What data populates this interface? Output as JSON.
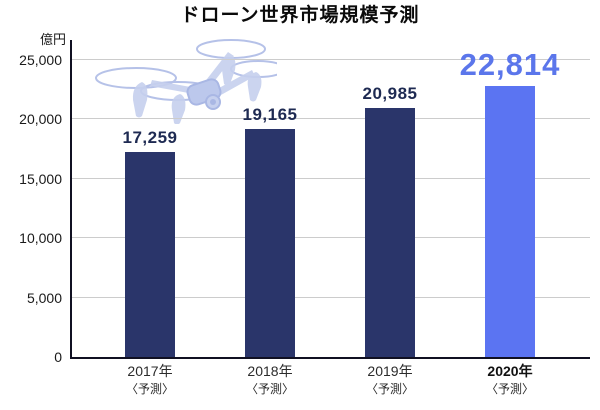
{
  "chart": {
    "title": "ドローン世界市場規模予測",
    "unit_label": "億円"
  },
  "chart_data": {
    "type": "bar",
    "title": "ドローン世界市場規模予測",
    "ylabel": "億円",
    "xlabel": "",
    "categories": [
      "2017年",
      "2018年",
      "2019年",
      "2020年"
    ],
    "category_subs": [
      "〈予測〉",
      "〈予測〉",
      "〈予測〉",
      "〈予測〉"
    ],
    "values": [
      17259,
      19165,
      20985,
      22814
    ],
    "value_labels": [
      "17,259",
      "19,165",
      "20,985",
      "22,814"
    ],
    "ylim": [
      0,
      25000
    ],
    "yticks": [
      0,
      5000,
      10000,
      15000,
      20000,
      25000
    ],
    "ytick_labels": [
      "0",
      "5,000",
      "10,000",
      "15,000",
      "20,000",
      "25,000"
    ],
    "grid": true,
    "legend": "none",
    "highlight_index": 3,
    "colors": {
      "bar_default": "#2a356a",
      "bar_highlight": "#5b74f2",
      "value_label_default": "#1e2a52",
      "value_label_highlight": "#5b76eb",
      "gridline": "#cccccc",
      "axis": "#101022",
      "watermark": "#c3cdee"
    }
  }
}
